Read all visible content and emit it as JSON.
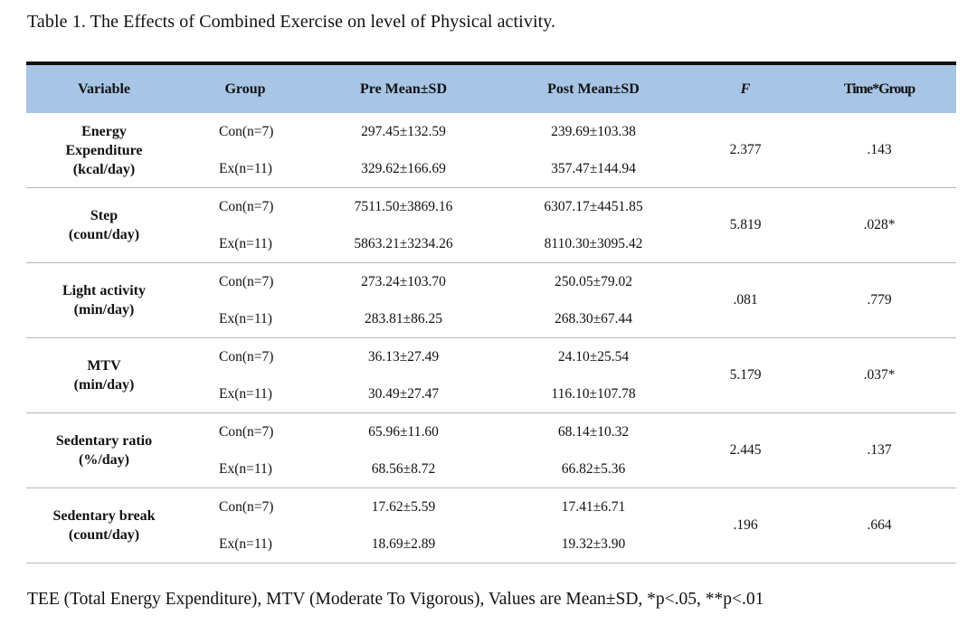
{
  "caption": "Table 1. The Effects of Combined Exercise on level of Physical activity.",
  "table": {
    "headers": {
      "variable": "Variable",
      "group": "Group",
      "pre": "Pre Mean±SD",
      "post": "Post Mean±SD",
      "f": "F",
      "time_group": "Time*Group"
    },
    "rows": [
      {
        "variable": [
          "Energy",
          "Expenditure",
          "(kcal/day)"
        ],
        "con": {
          "group": "Con(n=7)",
          "pre": "297.45±132.59",
          "post": "239.69±103.38"
        },
        "ex": {
          "group": "Ex(n=11)",
          "pre": "329.62±166.69",
          "post": "357.47±144.94"
        },
        "f": "2.377",
        "time_group": ".143"
      },
      {
        "variable": [
          "Step",
          "(count/day)"
        ],
        "con": {
          "group": "Con(n=7)",
          "pre": "7511.50±3869.16",
          "post": "6307.17±4451.85"
        },
        "ex": {
          "group": "Ex(n=11)",
          "pre": "5863.21±3234.26",
          "post": "8110.30±3095.42"
        },
        "f": "5.819",
        "time_group": ".028*"
      },
      {
        "variable": [
          "Light activity",
          "(min/day)"
        ],
        "con": {
          "group": "Con(n=7)",
          "pre": "273.24±103.70",
          "post": "250.05±79.02"
        },
        "ex": {
          "group": "Ex(n=11)",
          "pre": "283.81±86.25",
          "post": "268.30±67.44"
        },
        "f": ".081",
        "time_group": ".779"
      },
      {
        "variable": [
          "MTV",
          "(min/day)"
        ],
        "con": {
          "group": "Con(n=7)",
          "pre": "36.13±27.49",
          "post": "24.10±25.54"
        },
        "ex": {
          "group": "Ex(n=11)",
          "pre": "30.49±27.47",
          "post": "116.10±107.78"
        },
        "f": "5.179",
        "time_group": ".037*"
      },
      {
        "variable": [
          "Sedentary ratio",
          "(%/day)"
        ],
        "con": {
          "group": "Con(n=7)",
          "pre": "65.96±11.60",
          "post": "68.14±10.32"
        },
        "ex": {
          "group": "Ex(n=11)",
          "pre": "68.56±8.72",
          "post": "66.82±5.36"
        },
        "f": "2.445",
        "time_group": ".137"
      },
      {
        "variable": [
          "Sedentary break",
          "(count/day)"
        ],
        "con": {
          "group": "Con(n=7)",
          "pre": "17.62±5.59",
          "post": "17.41±6.71"
        },
        "ex": {
          "group": "Ex(n=11)",
          "pre": "18.69±2.89",
          "post": "19.32±3.90"
        },
        "f": ".196",
        "time_group": ".664"
      }
    ]
  },
  "footer": "TEE (Total Energy Expenditure), MTV (Moderate To Vigorous), Values are Mean±SD, *p<.05, **p<.01"
}
